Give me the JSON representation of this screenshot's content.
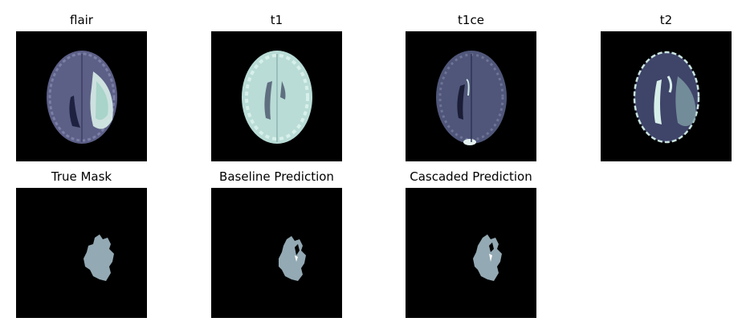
{
  "figure": {
    "panels": [
      {
        "title": "flair",
        "kind": "flair"
      },
      {
        "title": "t1",
        "kind": "t1"
      },
      {
        "title": "t1ce",
        "kind": "t1ce"
      },
      {
        "title": "t2",
        "kind": "t2"
      },
      {
        "title": "True Mask",
        "kind": "mask"
      },
      {
        "title": "Baseline Prediction",
        "kind": "mask"
      },
      {
        "title": "Cascaded Prediction",
        "kind": "mask"
      }
    ],
    "colors": {
      "background": "#000000",
      "mask_fill": "#93a9b3",
      "flair_tissue": "#5c5f86",
      "t1_tissue": "#b9dcd6",
      "t1ce_tissue": "#4f5679",
      "t2_tissue": "#3f4469"
    }
  }
}
